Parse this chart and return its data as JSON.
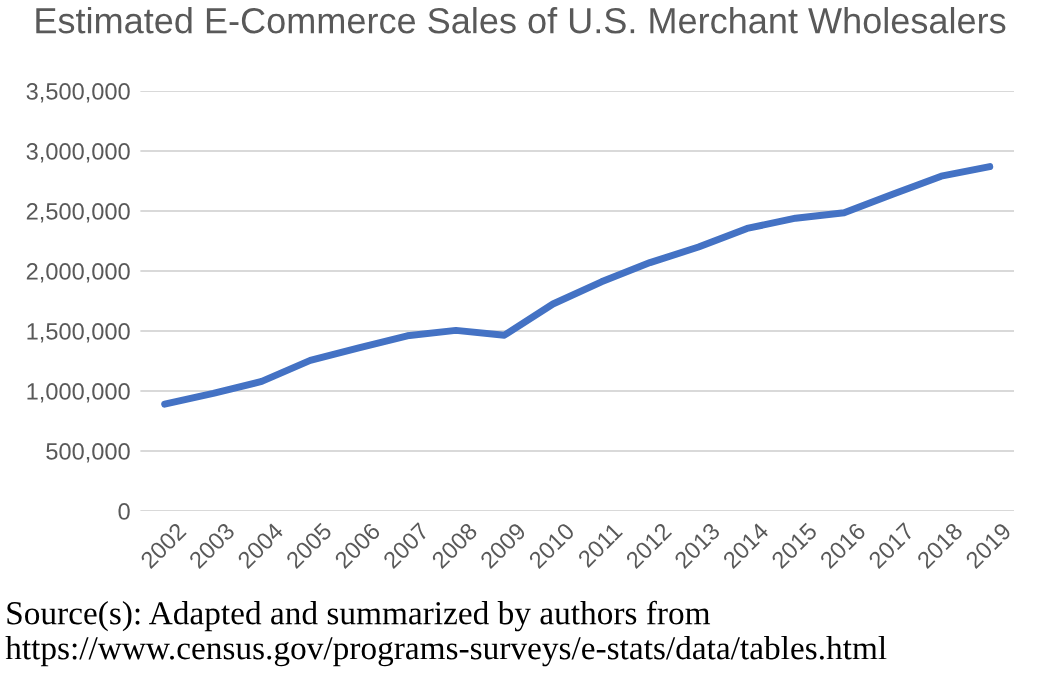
{
  "chart_data": {
    "type": "line",
    "title": "Estimated E-Commerce Sales of U.S. Merchant Wholesalers",
    "categories": [
      "2002",
      "2003",
      "2004",
      "2005",
      "2006",
      "2007",
      "2008",
      "2009",
      "2010",
      "2011",
      "2012",
      "2013",
      "2014",
      "2015",
      "2016",
      "2017",
      "2018",
      "2019"
    ],
    "series": [
      {
        "color": "#4472c4",
        "values": [
          890000,
          980000,
          1080000,
          1255000,
          1360000,
          1460000,
          1505000,
          1465000,
          1725000,
          1910000,
          2070000,
          2200000,
          2355000,
          2440000,
          2485000,
          2640000,
          2790000,
          2870000
        ]
      }
    ],
    "ylim": [
      0,
      3500000
    ],
    "yticks": [
      {
        "value": 0,
        "label": "0"
      },
      {
        "value": 500000,
        "label": "500,000"
      },
      {
        "value": 1000000,
        "label": "1,000,000"
      },
      {
        "value": 1500000,
        "label": "1,500,000"
      },
      {
        "value": 2000000,
        "label": "2,000,000"
      },
      {
        "value": 2500000,
        "label": "2,500,000"
      },
      {
        "value": 3000000,
        "label": "3,000,000"
      },
      {
        "value": 3500000,
        "label": "3,500,000"
      }
    ],
    "grid": "y",
    "marker": "none",
    "line_style": "solid",
    "annotations": [
      "Source(s): Adapted and summarized by authors from https://www.census.gov/programs-surveys/e-stats/data/tables.html"
    ]
  }
}
